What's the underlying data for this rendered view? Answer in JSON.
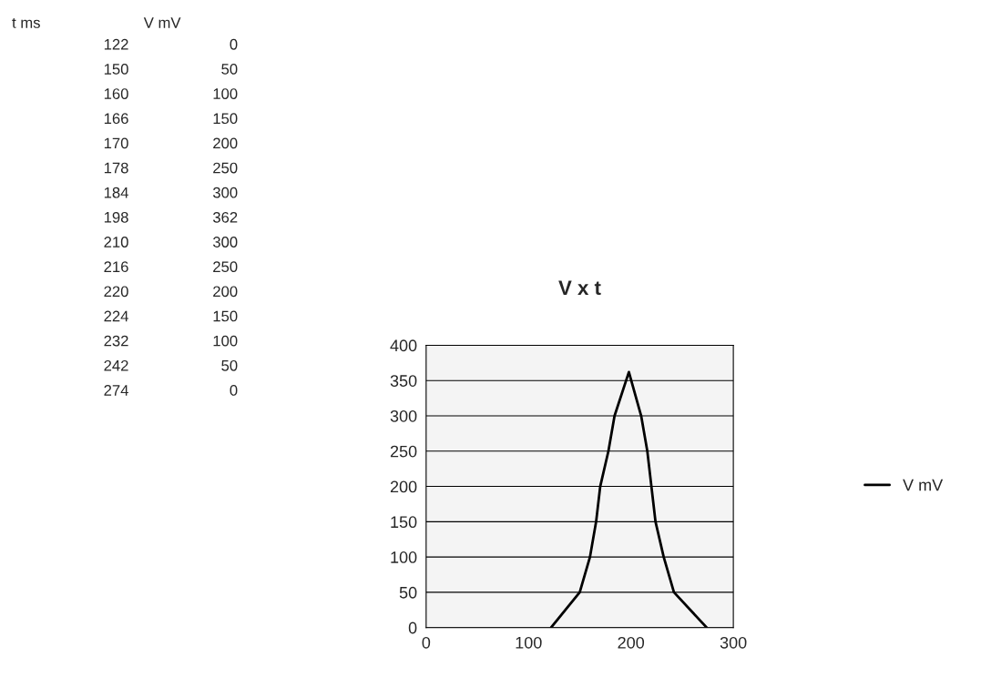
{
  "chart_data": {
    "type": "line",
    "title": "V x t",
    "annotations": [
      "t ms",
      "V mV",
      "122",
      "0",
      "150",
      "50",
      "160",
      "100",
      "166",
      "150",
      "170",
      "200",
      "178",
      "250",
      "184",
      "300",
      "198",
      "362",
      "210",
      "300",
      "216",
      "250",
      "220",
      "200",
      "224",
      "150",
      "232",
      "100",
      "242",
      "50",
      "274",
      "0"
    ],
    "x": [
      122,
      150,
      160,
      166,
      170,
      178,
      184,
      198,
      210,
      216,
      220,
      224,
      232,
      242,
      274
    ],
    "series": [
      {
        "name": "V mV",
        "color": "#000000",
        "values": [
          0,
          50,
          100,
          150,
          200,
          250,
          300,
          362,
          300,
          250,
          200,
          150,
          100,
          50,
          0
        ]
      }
    ],
    "xlim": [
      0,
      300
    ],
    "xticks": [
      0,
      100,
      200,
      300
    ],
    "ylim": [
      0,
      400
    ],
    "yticks": [
      0,
      50,
      100,
      150,
      200,
      250,
      300,
      350,
      400
    ],
    "grid": "y",
    "legend": "right",
    "marker": "none",
    "line_style": "solid"
  }
}
